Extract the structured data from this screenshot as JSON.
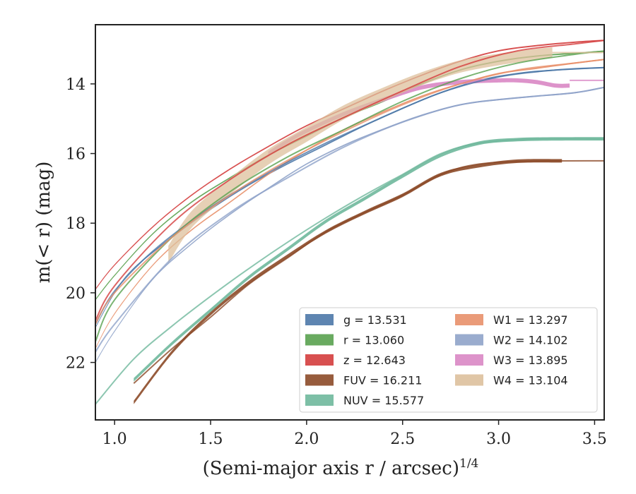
{
  "chart_data": {
    "type": "line",
    "xlabel": "(Semi-major axis r / arcsec)",
    "xlabel_sup": "1/4",
    "ylabel": "m(< r) (mag)",
    "xlim": [
      0.9,
      3.55
    ],
    "ylim": [
      23.65,
      12.3
    ],
    "y_inverted": true,
    "xticks": [
      1.0,
      1.5,
      2.0,
      2.5,
      3.0,
      3.5
    ],
    "xtick_labels": [
      "1.0",
      "1.5",
      "2.0",
      "2.5",
      "3.0",
      "3.5"
    ],
    "yticks": [
      14,
      16,
      18,
      20,
      22
    ],
    "ytick_labels": [
      "14",
      "16",
      "18",
      "20",
      "22"
    ],
    "grid": false,
    "legend_position": "lower-right",
    "series": [
      {
        "name": "g",
        "legend_label": "g = 13.531",
        "color": "#4c78a8",
        "band_width": 0.04,
        "points": [
          [
            0.9,
            21.0
          ],
          [
            1.0,
            20.0
          ],
          [
            1.1,
            19.3
          ],
          [
            1.3,
            18.4
          ],
          [
            1.5,
            17.6
          ],
          [
            1.7,
            16.9
          ],
          [
            1.9,
            16.3
          ],
          [
            2.1,
            15.75
          ],
          [
            2.3,
            15.2
          ],
          [
            2.5,
            14.7
          ],
          [
            2.7,
            14.25
          ],
          [
            2.9,
            13.9
          ],
          [
            3.1,
            13.7
          ],
          [
            3.3,
            13.6
          ],
          [
            3.55,
            13.53
          ]
        ],
        "model": [
          [
            0.9,
            20.9
          ],
          [
            1.0,
            19.95
          ],
          [
            1.2,
            18.8
          ],
          [
            1.5,
            17.55
          ],
          [
            1.8,
            16.55
          ],
          [
            2.1,
            15.7
          ],
          [
            2.4,
            14.95
          ],
          [
            2.7,
            14.25
          ],
          [
            3.0,
            13.8
          ],
          [
            3.3,
            13.6
          ],
          [
            3.55,
            13.53
          ]
        ]
      },
      {
        "name": "r",
        "legend_label": "r = 13.060",
        "color": "#59a14f",
        "band_width": 0.04,
        "points": [
          [
            0.9,
            20.2
          ],
          [
            1.0,
            19.5
          ],
          [
            1.2,
            18.3
          ],
          [
            1.4,
            17.4
          ],
          [
            1.6,
            16.7
          ],
          [
            1.8,
            16.05
          ],
          [
            2.0,
            15.5
          ],
          [
            2.2,
            14.95
          ],
          [
            2.4,
            14.5
          ],
          [
            2.6,
            14.0
          ],
          [
            2.8,
            13.6
          ],
          [
            3.0,
            13.35
          ],
          [
            3.2,
            13.2
          ],
          [
            3.4,
            13.12
          ],
          [
            3.55,
            13.06
          ]
        ],
        "model": [
          [
            0.9,
            21.4
          ],
          [
            1.0,
            20.2
          ],
          [
            1.3,
            18.4
          ],
          [
            1.6,
            17.1
          ],
          [
            1.9,
            16.1
          ],
          [
            2.2,
            15.3
          ],
          [
            2.5,
            14.5
          ],
          [
            2.8,
            13.85
          ],
          [
            3.1,
            13.4
          ],
          [
            3.4,
            13.15
          ],
          [
            3.55,
            13.06
          ]
        ]
      },
      {
        "name": "z",
        "legend_label": "z = 12.643",
        "color": "#d43d3d",
        "band_width": 0.04,
        "points": [
          [
            0.9,
            19.9
          ],
          [
            1.0,
            19.2
          ],
          [
            1.2,
            18.1
          ],
          [
            1.4,
            17.2
          ],
          [
            1.6,
            16.45
          ],
          [
            1.8,
            15.8
          ],
          [
            2.0,
            15.2
          ],
          [
            2.2,
            14.7
          ],
          [
            2.4,
            14.2
          ],
          [
            2.6,
            13.75
          ],
          [
            2.8,
            13.35
          ],
          [
            3.0,
            13.05
          ],
          [
            3.2,
            12.9
          ],
          [
            3.4,
            12.8
          ],
          [
            3.55,
            12.75
          ]
        ],
        "model": [
          [
            0.9,
            20.8
          ],
          [
            1.0,
            19.8
          ],
          [
            1.3,
            18.0
          ],
          [
            1.6,
            16.75
          ],
          [
            1.9,
            15.75
          ],
          [
            2.2,
            14.95
          ],
          [
            2.5,
            14.2
          ],
          [
            2.8,
            13.5
          ],
          [
            3.1,
            13.05
          ],
          [
            3.4,
            12.85
          ],
          [
            3.55,
            12.75
          ]
        ]
      },
      {
        "name": "FUV",
        "legend_label": "FUV = 16.211",
        "color": "#8c4a28",
        "band_width": 0.1,
        "band_from_x": 1.1,
        "points": [
          [
            1.1,
            23.15
          ],
          [
            1.3,
            21.7
          ],
          [
            1.5,
            20.6
          ],
          [
            1.7,
            19.7
          ],
          [
            1.9,
            18.95
          ],
          [
            2.1,
            18.25
          ],
          [
            2.3,
            17.7
          ],
          [
            2.5,
            17.2
          ],
          [
            2.7,
            16.6
          ],
          [
            2.9,
            16.35
          ],
          [
            3.1,
            16.22
          ],
          [
            3.33,
            16.21
          ]
        ],
        "model": [
          [
            1.1,
            22.6
          ],
          [
            1.3,
            21.6
          ],
          [
            1.5,
            20.7
          ],
          [
            1.7,
            19.75
          ],
          [
            1.9,
            19.0
          ],
          [
            2.1,
            18.25
          ],
          [
            2.3,
            17.7
          ],
          [
            2.5,
            17.2
          ],
          [
            2.7,
            16.6
          ],
          [
            2.9,
            16.3
          ],
          [
            3.2,
            16.22
          ],
          [
            3.55,
            16.21
          ]
        ]
      },
      {
        "name": "NUV",
        "legend_label": "NUV = 15.577",
        "color": "#6fb89c",
        "band_width": 0.1,
        "band_from_x": 1.1,
        "points": [
          [
            1.1,
            22.5
          ],
          [
            1.3,
            21.45
          ],
          [
            1.5,
            20.5
          ],
          [
            1.7,
            19.55
          ],
          [
            1.9,
            18.75
          ],
          [
            2.1,
            17.95
          ],
          [
            2.3,
            17.3
          ],
          [
            2.5,
            16.65
          ],
          [
            2.7,
            16.05
          ],
          [
            2.9,
            15.7
          ],
          [
            3.1,
            15.6
          ],
          [
            3.3,
            15.58
          ],
          [
            3.55,
            15.577
          ]
        ],
        "model": [
          [
            0.9,
            23.2
          ],
          [
            1.1,
            21.9
          ],
          [
            1.3,
            20.95
          ],
          [
            1.5,
            20.1
          ],
          [
            1.7,
            19.3
          ],
          [
            1.9,
            18.55
          ],
          [
            2.1,
            17.85
          ],
          [
            2.3,
            17.2
          ],
          [
            2.5,
            16.6
          ],
          [
            2.7,
            16.0
          ],
          [
            2.9,
            15.7
          ],
          [
            3.2,
            15.58
          ],
          [
            3.55,
            15.577
          ]
        ]
      },
      {
        "name": "W1",
        "legend_label": "W1 = 13.297",
        "color": "#e8906a",
        "band_width": 0.04,
        "points": [
          [
            0.9,
            21.6
          ],
          [
            1.0,
            20.6
          ],
          [
            1.2,
            19.2
          ],
          [
            1.4,
            18.2
          ],
          [
            1.6,
            17.4
          ],
          [
            1.8,
            16.6
          ],
          [
            2.0,
            15.9
          ],
          [
            2.2,
            15.3
          ],
          [
            2.4,
            14.8
          ],
          [
            2.6,
            14.35
          ],
          [
            2.8,
            14.0
          ],
          [
            3.0,
            13.7
          ],
          [
            3.2,
            13.55
          ],
          [
            3.4,
            13.4
          ],
          [
            3.55,
            13.3
          ]
        ],
        "model": [
          [
            0.9,
            20.9
          ],
          [
            1.0,
            20.0
          ],
          [
            1.3,
            18.4
          ],
          [
            1.6,
            17.2
          ],
          [
            1.9,
            16.2
          ],
          [
            2.2,
            15.35
          ],
          [
            2.5,
            14.6
          ],
          [
            2.8,
            14.0
          ],
          [
            3.1,
            13.6
          ],
          [
            3.4,
            13.4
          ],
          [
            3.55,
            13.3
          ]
        ]
      },
      {
        "name": "W2",
        "legend_label": "W2 = 14.102",
        "color": "#8fa3c9",
        "band_width": 0.04,
        "points": [
          [
            0.9,
            22.0
          ],
          [
            1.0,
            21.1
          ],
          [
            1.2,
            19.6
          ],
          [
            1.4,
            18.6
          ],
          [
            1.6,
            17.75
          ],
          [
            1.8,
            17.0
          ],
          [
            2.0,
            16.3
          ],
          [
            2.2,
            15.75
          ],
          [
            2.4,
            15.3
          ],
          [
            2.6,
            14.9
          ],
          [
            2.8,
            14.6
          ],
          [
            3.0,
            14.45
          ],
          [
            3.2,
            14.35
          ],
          [
            3.4,
            14.25
          ],
          [
            3.55,
            14.1
          ]
        ],
        "model": [
          [
            0.9,
            21.7
          ],
          [
            1.0,
            20.9
          ],
          [
            1.3,
            19.0
          ],
          [
            1.6,
            17.7
          ],
          [
            1.9,
            16.7
          ],
          [
            2.2,
            15.8
          ],
          [
            2.5,
            15.1
          ],
          [
            2.8,
            14.6
          ],
          [
            3.1,
            14.4
          ],
          [
            3.4,
            14.25
          ],
          [
            3.55,
            14.1
          ]
        ]
      },
      {
        "name": "W3",
        "legend_label": "W3 = 13.895",
        "color": "#d987c4",
        "band_width": 0.12,
        "points": [
          [
            1.8,
            16.0
          ],
          [
            1.9,
            15.65
          ],
          [
            2.0,
            15.35
          ],
          [
            2.2,
            14.85
          ],
          [
            2.4,
            14.45
          ],
          [
            2.6,
            14.1
          ],
          [
            2.8,
            13.95
          ],
          [
            3.0,
            13.9
          ],
          [
            3.1,
            13.9
          ],
          [
            3.2,
            13.95
          ],
          [
            3.3,
            14.05
          ],
          [
            3.37,
            14.05
          ]
        ],
        "model": [
          [
            3.37,
            13.9
          ],
          [
            3.55,
            13.9
          ]
        ]
      },
      {
        "name": "W4",
        "legend_label": "W4 = 13.104",
        "color": "#ddc09c",
        "band_width": 0.5,
        "band_end_width": 0.3,
        "band_from_x": 1.28,
        "points": [
          [
            1.28,
            18.9
          ],
          [
            1.4,
            17.9
          ],
          [
            1.6,
            16.95
          ],
          [
            1.8,
            16.1
          ],
          [
            2.0,
            15.45
          ],
          [
            2.2,
            14.8
          ],
          [
            2.4,
            14.3
          ],
          [
            2.6,
            13.85
          ],
          [
            2.8,
            13.5
          ],
          [
            3.0,
            13.3
          ],
          [
            3.2,
            13.15
          ],
          [
            3.28,
            13.1
          ]
        ],
        "model": [
          [
            3.28,
            13.1
          ],
          [
            3.55,
            13.1
          ]
        ]
      }
    ]
  }
}
